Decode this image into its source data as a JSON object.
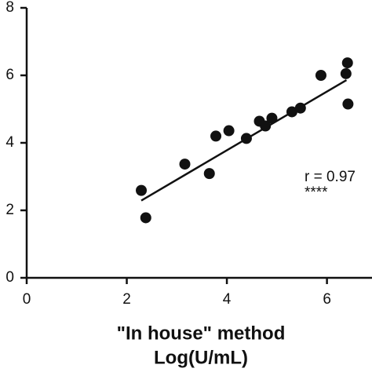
{
  "chart_data": {
    "type": "scatter",
    "x_label_lines": [
      "\"In house\" method",
      "Log(U/mL)"
    ],
    "annotations": [
      "r = 0.97",
      "****"
    ],
    "series": [
      {
        "color": "#111111",
        "x": [
          2.29,
          2.38,
          3.16,
          3.65,
          3.78,
          4.04,
          4.39,
          4.65,
          4.77,
          4.9,
          5.3,
          5.47,
          5.88,
          6.41,
          6.38,
          6.42
        ],
        "values": [
          2.59,
          1.78,
          3.37,
          3.09,
          4.2,
          4.36,
          4.13,
          4.64,
          4.5,
          4.73,
          4.92,
          5.03,
          6.0,
          6.37,
          6.05,
          5.15
        ]
      }
    ],
    "fit": {
      "x": [
        2.29,
        6.39
      ],
      "values": [
        2.29,
        5.86
      ]
    },
    "xlim": [
      0,
      6.9
    ],
    "ylim": [
      0,
      8
    ],
    "xticks": [
      0,
      2,
      4,
      6
    ],
    "yticks": [
      0,
      2,
      4,
      6,
      8
    ]
  }
}
